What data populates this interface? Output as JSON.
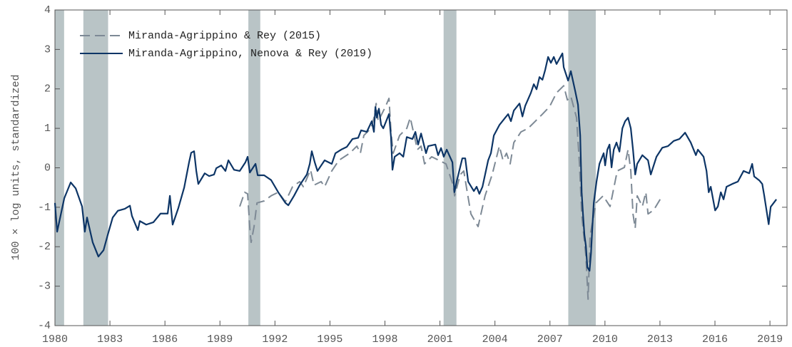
{
  "chart_data": {
    "type": "line",
    "ylabel": "100 × log units, standardized",
    "xlim": [
      1980,
      2019.93
    ],
    "ylim": [
      -4,
      4
    ],
    "xticks": [
      1980,
      1983,
      1986,
      1989,
      1992,
      1995,
      1998,
      2001,
      2004,
      2007,
      2010,
      2013,
      2016,
      2019
    ],
    "yticks": [
      -4,
      -3,
      -2,
      -1,
      0,
      1,
      2,
      3,
      4
    ],
    "legend": "upper left",
    "shade_color": "#b9c4c6",
    "shaded_periods": [
      [
        1980,
        1980.5
      ],
      [
        1981.55,
        1982.9
      ],
      [
        1990.55,
        1991.2
      ],
      [
        2001.2,
        2001.9
      ],
      [
        2008.0,
        2009.5
      ]
    ],
    "series": [
      {
        "name": "Miranda-Agrippino & Rey (2015)",
        "color": "#7d8995",
        "line_style": "dashed",
        "x": [
          1990.08,
          1990.35,
          1990.51,
          1990.63,
          1990.7,
          1990.86,
          1991.02,
          1991.41,
          1991.79,
          1992.18,
          1992.57,
          1992.96,
          1993.35,
          1993.55,
          1993.94,
          1994.13,
          1994.52,
          1994.71,
          1995.1,
          1995.49,
          1996.08,
          1996.47,
          1996.66,
          1996.85,
          1997.24,
          1997.4,
          1997.52,
          1997.63,
          1998.02,
          1998.22,
          1998.33,
          1998.45,
          1998.8,
          1999.19,
          1999.38,
          1999.77,
          1999.97,
          2000.16,
          2000.55,
          2000.94,
          2001.33,
          2001.72,
          2001.8,
          2002.11,
          2002.3,
          2002.49,
          2002.69,
          2003.08,
          2003.46,
          2003.85,
          2004.24,
          2004.44,
          2004.63,
          2004.83,
          2005.03,
          2005.42,
          2005.81,
          2006.2,
          2006.59,
          2006.98,
          2007.36,
          2007.75,
          2007.95,
          2008.14,
          2008.45,
          2008.61,
          2008.73,
          2008.96,
          2009.08,
          2009.19,
          2009.51,
          2009.9,
          2010.28,
          2010.67,
          2011.06,
          2011.26,
          2011.41,
          2011.53,
          2011.65,
          2011.76,
          2012.04,
          2012.23,
          2012.35,
          2012.66,
          2013.01
        ],
        "values": [
          -0.98,
          -0.62,
          -0.66,
          -1.53,
          -1.89,
          -1.49,
          -0.89,
          -0.84,
          -0.71,
          -0.62,
          -0.86,
          -0.48,
          -0.35,
          -0.48,
          -0.05,
          -0.44,
          -0.35,
          -0.48,
          -0.08,
          0.19,
          0.37,
          0.55,
          0.37,
          0.82,
          1.0,
          1.27,
          1.63,
          1.18,
          1.54,
          1.76,
          0.91,
          0.37,
          0.82,
          1.0,
          1.27,
          0.46,
          0.55,
          0.1,
          0.28,
          0.19,
          0.1,
          -0.44,
          -0.71,
          -0.17,
          -0.08,
          -0.62,
          -1.17,
          -1.49,
          -0.71,
          -0.17,
          0.55,
          0.19,
          0.37,
          0.1,
          0.64,
          0.91,
          1.0,
          1.18,
          1.36,
          1.55,
          1.9,
          2.08,
          1.72,
          1.81,
          1.27,
          0.1,
          -1.17,
          -2.24,
          -3.33,
          -1.71,
          -0.89,
          -0.71,
          -0.98,
          -0.08,
          0.01,
          0.46,
          -0.08,
          -1.17,
          -1.53,
          -0.71,
          -0.98,
          -0.62,
          -1.17,
          -1.07,
          -0.8
        ]
      },
      {
        "name": "Miranda-Agrippino, Nenova & Rey (2019)",
        "color": "#0d3566",
        "line_style": "solid",
        "x": [
          1980.0,
          1980.12,
          1980.51,
          1980.86,
          1981.13,
          1981.48,
          1981.63,
          1981.75,
          1982.06,
          1982.37,
          1982.65,
          1982.88,
          1983.15,
          1983.43,
          1983.81,
          1984.09,
          1984.2,
          1984.52,
          1984.63,
          1984.98,
          1985.37,
          1985.76,
          1986.15,
          1986.27,
          1986.42,
          1986.73,
          1987.05,
          1987.32,
          1987.43,
          1987.59,
          1987.71,
          1987.82,
          1988.17,
          1988.41,
          1988.68,
          1988.8,
          1989.07,
          1989.3,
          1989.46,
          1989.77,
          1990.08,
          1990.39,
          1990.51,
          1990.63,
          1990.94,
          1991.06,
          1991.41,
          1991.79,
          1992.18,
          1992.57,
          1992.73,
          1993.04,
          1993.35,
          1993.74,
          1993.9,
          1994.01,
          1994.17,
          1994.32,
          1994.71,
          1995.1,
          1995.3,
          1995.61,
          1995.92,
          1996.23,
          1996.54,
          1996.7,
          1997.01,
          1997.28,
          1997.4,
          1997.48,
          1997.56,
          1997.67,
          1997.79,
          1997.91,
          1998.22,
          1998.33,
          1998.41,
          1998.53,
          1998.8,
          1999.0,
          1999.19,
          1999.5,
          1999.66,
          1999.81,
          1999.97,
          2000.24,
          2000.36,
          2000.75,
          2000.9,
          2001.06,
          2001.21,
          2001.37,
          2001.68,
          2001.79,
          2001.91,
          2002.22,
          2002.38,
          2002.54,
          2002.85,
          2003.0,
          2003.15,
          2003.32,
          2003.63,
          2003.78,
          2003.94,
          2004.25,
          2004.56,
          2004.72,
          2004.87,
          2005.03,
          2005.34,
          2005.5,
          2005.65,
          2005.96,
          2006.12,
          2006.27,
          2006.43,
          2006.59,
          2006.74,
          2006.9,
          2007.05,
          2007.21,
          2007.36,
          2007.68,
          2007.75,
          2007.99,
          2008.14,
          2008.38,
          2008.53,
          2008.65,
          2008.73,
          2008.8,
          2008.88,
          2008.96,
          2009.04,
          2009.16,
          2009.24,
          2009.31,
          2009.39,
          2009.54,
          2009.7,
          2009.93,
          2010.01,
          2010.13,
          2010.25,
          2010.36,
          2010.48,
          2010.63,
          2010.79,
          2010.95,
          2011.1,
          2011.26,
          2011.41,
          2011.53,
          2011.65,
          2011.76,
          2012.04,
          2012.35,
          2012.5,
          2012.81,
          2013.13,
          2013.44,
          2013.75,
          2014.06,
          2014.37,
          2014.68,
          2014.96,
          2015.07,
          2015.38,
          2015.54,
          2015.66,
          2015.77,
          2016.01,
          2016.16,
          2016.32,
          2016.47,
          2016.63,
          2016.94,
          2017.25,
          2017.56,
          2017.87,
          2018.03,
          2018.14,
          2018.42,
          2018.58,
          2018.69,
          2018.81,
          2018.93,
          2019.04,
          2019.35
        ],
        "values": [
          -0.89,
          -1.62,
          -0.77,
          -0.37,
          -0.52,
          -0.98,
          -1.62,
          -1.26,
          -1.89,
          -2.25,
          -2.09,
          -1.7,
          -1.26,
          -1.09,
          -1.04,
          -0.96,
          -1.22,
          -1.58,
          -1.35,
          -1.44,
          -1.38,
          -1.16,
          -1.16,
          -0.71,
          -1.44,
          -1.02,
          -0.5,
          0.15,
          0.38,
          0.42,
          -0.08,
          -0.41,
          -0.14,
          -0.21,
          -0.17,
          -0.01,
          0.06,
          -0.08,
          0.19,
          -0.05,
          -0.08,
          0.14,
          0.28,
          -0.12,
          0.1,
          -0.19,
          -0.19,
          -0.31,
          -0.62,
          -0.89,
          -0.95,
          -0.71,
          -0.44,
          -0.17,
          0.1,
          0.42,
          0.14,
          -0.08,
          0.19,
          0.1,
          0.37,
          0.46,
          0.53,
          0.73,
          0.76,
          0.95,
          0.91,
          1.18,
          0.91,
          1.54,
          1.27,
          1.5,
          1.09,
          1.0,
          1.36,
          0.78,
          -0.05,
          0.28,
          0.37,
          0.28,
          0.78,
          0.73,
          0.91,
          0.59,
          0.87,
          0.37,
          0.55,
          0.59,
          0.32,
          0.5,
          0.28,
          0.46,
          0.14,
          -0.62,
          -0.35,
          0.24,
          0.24,
          -0.35,
          -0.59,
          -0.48,
          -0.66,
          -0.48,
          0.19,
          0.37,
          0.82,
          1.09,
          1.27,
          1.36,
          1.18,
          1.45,
          1.63,
          1.3,
          1.57,
          1.9,
          2.12,
          1.99,
          2.3,
          2.23,
          2.48,
          2.81,
          2.66,
          2.81,
          2.63,
          2.9,
          2.55,
          2.21,
          2.45,
          1.94,
          1.6,
          0.82,
          -0.62,
          -1.16,
          -1.7,
          -1.98,
          -2.52,
          -2.61,
          -2.16,
          -1.53,
          -0.89,
          -0.35,
          0.1,
          0.37,
          0.06,
          0.46,
          0.59,
          0.01,
          0.46,
          0.64,
          0.41,
          1.0,
          1.18,
          1.27,
          1.0,
          0.46,
          -0.17,
          0.1,
          0.32,
          0.19,
          -0.17,
          0.28,
          0.51,
          0.55,
          0.68,
          0.73,
          0.89,
          0.64,
          0.32,
          0.46,
          0.28,
          -0.08,
          -0.62,
          -0.48,
          -1.08,
          -0.98,
          -0.62,
          -0.8,
          -0.48,
          -0.41,
          -0.35,
          -0.08,
          -0.14,
          0.1,
          -0.22,
          -0.32,
          -0.41,
          -0.71,
          -1.07,
          -1.43,
          -0.99,
          -0.8
        ]
      }
    ]
  }
}
